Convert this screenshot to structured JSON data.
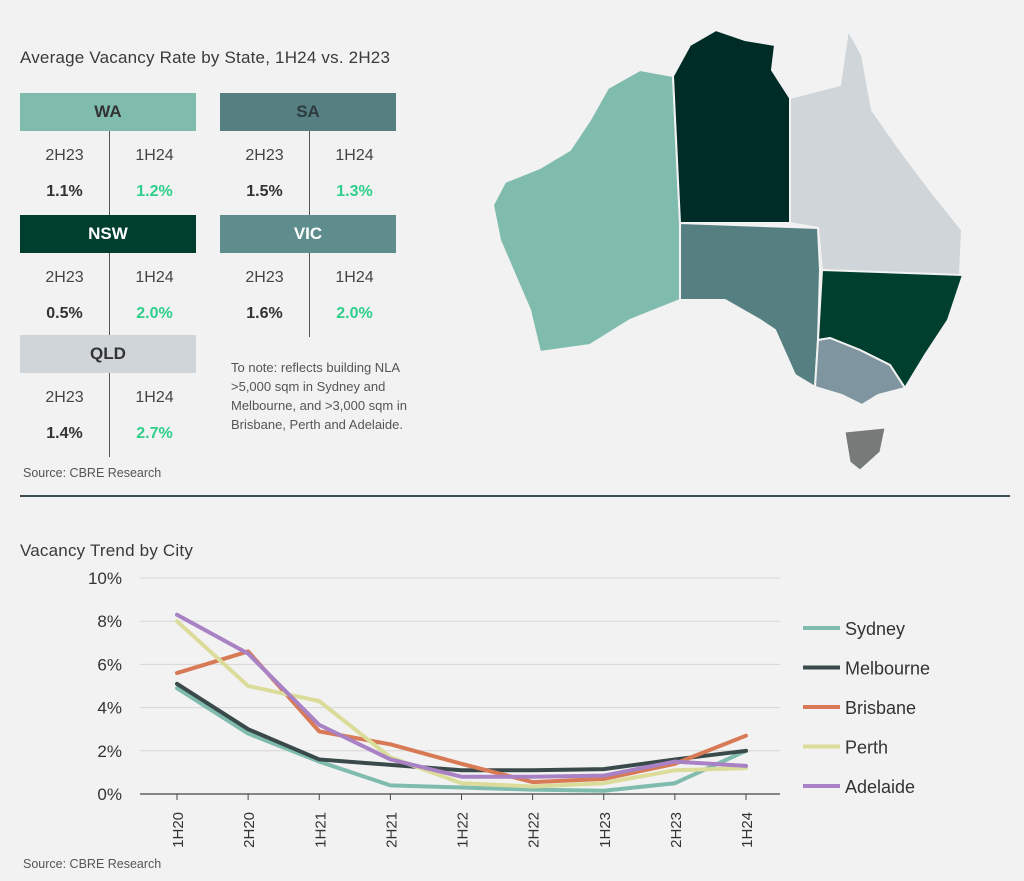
{
  "top": {
    "title": "Average Vacancy Rate by State, 1H24 vs. 2H23",
    "cards": [
      {
        "state": "WA",
        "col1": "2H23",
        "col2": "1H24",
        "v1": "1.1%",
        "v2": "1.2%",
        "header_bg": "#7fbcae",
        "header_fg": "#333333"
      },
      {
        "state": "SA",
        "col1": "2H23",
        "col2": "1H24",
        "v1": "1.5%",
        "v2": "1.3%",
        "header_bg": "#567f82",
        "header_fg": "#2d3b3e"
      },
      {
        "state": "NSW",
        "col1": "2H23",
        "col2": "1H24",
        "v1": "0.5%",
        "v2": "2.0%",
        "header_bg": "#003f2d",
        "header_fg": "#ffffff"
      },
      {
        "state": "VIC",
        "col1": "2H23",
        "col2": "1H24",
        "v1": "1.6%",
        "v2": "2.0%",
        "header_bg": "#5f8d8d",
        "header_fg": "#ffffff"
      },
      {
        "state": "QLD",
        "col1": "2H23",
        "col2": "1H24",
        "v1": "1.4%",
        "v2": "2.7%",
        "header_bg": "#cfd5d8",
        "header_fg": "#333333"
      }
    ],
    "note": "To note: reflects building NLA >5,000 sqm in Sydney and Melbourne, and >3,000 sqm in Brisbane, Perth and Adelaide.",
    "source": "Source: CBRE Research"
  },
  "map": {
    "regions": [
      {
        "name": "WA",
        "color": "#7fbcae"
      },
      {
        "name": "NT",
        "color": "#002c28"
      },
      {
        "name": "QLD",
        "color": "#cfd5d8"
      },
      {
        "name": "SA",
        "color": "#567f82"
      },
      {
        "name": "NSW",
        "color": "#003f2d"
      },
      {
        "name": "VIC",
        "color": "#7f95a0"
      },
      {
        "name": "TAS",
        "color": "#767a79"
      }
    ]
  },
  "chart": {
    "title": "Vacancy Trend by City",
    "source": "Source: CBRE Research"
  },
  "chart_data": {
    "type": "line",
    "title": "Vacancy Trend by City",
    "x": [
      "1H20",
      "2H20",
      "1H21",
      "2H21",
      "1H22",
      "2H22",
      "1H23",
      "2H23",
      "1H24"
    ],
    "ylim": [
      0,
      10
    ],
    "yticks": [
      "0%",
      "2%",
      "4%",
      "6%",
      "8%",
      "10%"
    ],
    "grid": true,
    "legend": "right",
    "series": [
      {
        "name": "Sydney",
        "color": "#7fbcae",
        "values": [
          4.9,
          2.8,
          1.5,
          0.4,
          0.3,
          0.2,
          0.15,
          0.5,
          2.0
        ]
      },
      {
        "name": "Melbourne",
        "color": "#3a4a4a",
        "values": [
          5.1,
          3.0,
          1.6,
          1.35,
          1.1,
          1.1,
          1.15,
          1.6,
          2.0
        ]
      },
      {
        "name": "Brisbane",
        "color": "#d77a55",
        "values": [
          5.6,
          6.6,
          2.9,
          2.3,
          1.4,
          0.55,
          0.7,
          1.4,
          2.7
        ]
      },
      {
        "name": "Perth",
        "color": "#dcdc9a",
        "values": [
          8.0,
          5.0,
          4.3,
          1.7,
          0.5,
          0.35,
          0.5,
          1.1,
          1.2
        ]
      },
      {
        "name": "Adelaide",
        "color": "#a882c4",
        "values": [
          8.3,
          6.5,
          3.2,
          1.6,
          0.8,
          0.8,
          0.85,
          1.5,
          1.3
        ]
      }
    ]
  }
}
